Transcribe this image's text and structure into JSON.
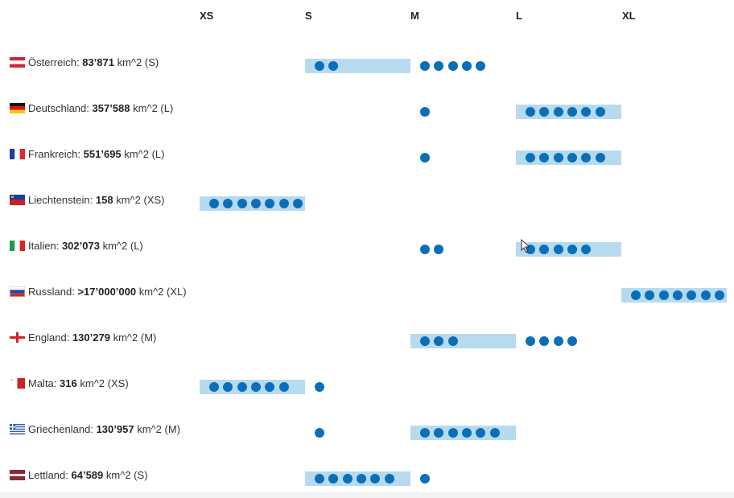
{
  "chart_data": {
    "type": "scatter",
    "columns": [
      "XS",
      "S",
      "M",
      "L",
      "XL"
    ],
    "rows": [
      {
        "country": "Österreich",
        "area": "83’871",
        "unit": "km^2",
        "size": "S",
        "prefix": "",
        "flag": "austria-flag",
        "dots": {
          "S": 2,
          "M": 5
        }
      },
      {
        "country": "Deutschland",
        "area": "357’588",
        "unit": "km^2",
        "size": "L",
        "prefix": "",
        "flag": "germany-flag",
        "dots": {
          "M": 1,
          "L": 6
        }
      },
      {
        "country": "Frankreich",
        "area": "551’695",
        "unit": "km^2",
        "size": "L",
        "prefix": "",
        "flag": "france-flag",
        "dots": {
          "M": 1,
          "L": 6
        }
      },
      {
        "country": "Liechtenstein",
        "area": "158",
        "unit": "km^2",
        "size": "XS",
        "prefix": "",
        "flag": "liechtenstein-flag",
        "dots": {
          "XS": 7
        }
      },
      {
        "country": "Italien",
        "area": "302’073",
        "unit": "km^2",
        "size": "L",
        "prefix": "",
        "flag": "italy-flag",
        "dots": {
          "M": 2,
          "L": 5
        }
      },
      {
        "country": "Russland",
        "area": "17’000’000",
        "unit": "km^2",
        "size": "XL",
        "prefix": "> ",
        "flag": "russia-flag",
        "dots": {
          "XL": 7
        }
      },
      {
        "country": "England",
        "area": "130’279",
        "unit": "km^2",
        "size": "M",
        "prefix": "",
        "flag": "england-flag",
        "dots": {
          "M": 3,
          "L": 4
        }
      },
      {
        "country": "Malta",
        "area": "316",
        "unit": "km^2",
        "size": "XS",
        "prefix": "",
        "flag": "malta-flag",
        "dots": {
          "XS": 6,
          "S": 1
        }
      },
      {
        "country": "Griechenland",
        "area": "130’957",
        "unit": "km^2",
        "size": "M",
        "prefix": "",
        "flag": "greece-flag",
        "dots": {
          "S": 1,
          "M": 6
        }
      },
      {
        "country": "Lettland",
        "area": "64’589",
        "unit": "km^2",
        "size": "S",
        "prefix": "",
        "flag": "latvia-flag",
        "dots": {
          "S": 6,
          "M": 1
        }
      }
    ]
  },
  "colors": {
    "dot": "#0b6fb8",
    "band": "#b6dbef"
  }
}
